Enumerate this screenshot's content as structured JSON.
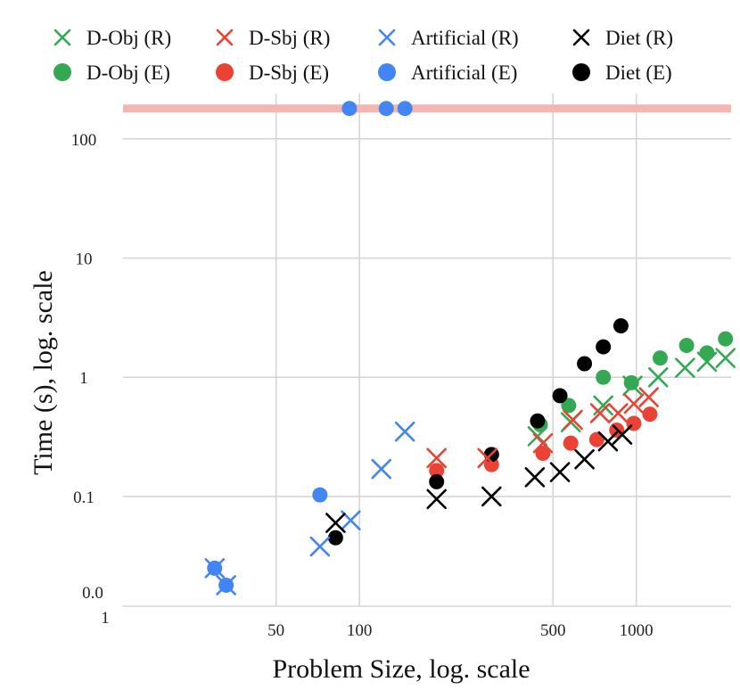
{
  "chart_data": {
    "type": "scatter",
    "title": "",
    "xlabel": "Problem Size, log. scale",
    "ylabel": "Time (s), log. scale",
    "x_scale": "log",
    "y_scale": "log",
    "xlim": [
      14,
      2200
    ],
    "ylim": [
      0.012,
      240
    ],
    "x_ticks": [
      {
        "v": 50,
        "label": "50"
      },
      {
        "v": 100,
        "label": "100"
      },
      {
        "v": 500,
        "label": "500"
      },
      {
        "v": 1000,
        "label": "1000"
      }
    ],
    "y_ticks": [
      {
        "v": 0.1,
        "label": "0.1"
      },
      {
        "v": 1,
        "label": "1"
      },
      {
        "v": 10,
        "label": "10"
      },
      {
        "v": 100,
        "label": "100"
      }
    ],
    "y_extra_labels": [
      "0.0",
      "1"
    ],
    "timeout_line": {
      "y": 180,
      "color": "#f4b6ae"
    },
    "legend": {
      "placement": "top",
      "columns": 4
    },
    "series": [
      {
        "name": "D-Obj (R)",
        "color": "#34a853",
        "marker": "x",
        "points": [
          [
            440,
            0.32
          ],
          [
            580,
            0.42
          ],
          [
            760,
            0.58
          ],
          [
            970,
            0.85
          ],
          [
            1200,
            1.0
          ],
          [
            1500,
            1.2
          ],
          [
            1800,
            1.35
          ],
          [
            2100,
            1.45
          ]
        ]
      },
      {
        "name": "D-Sbj (R)",
        "color": "#ea4335",
        "marker": "x",
        "points": [
          [
            190,
            0.21
          ],
          [
            290,
            0.21
          ],
          [
            460,
            0.28
          ],
          [
            590,
            0.44
          ],
          [
            740,
            0.5
          ],
          [
            860,
            0.5
          ],
          [
            980,
            0.6
          ],
          [
            1110,
            0.68
          ]
        ]
      },
      {
        "name": "Artificial (R)",
        "color": "#4285f4",
        "marker": "x",
        "points": [
          [
            30,
            0.025
          ],
          [
            33,
            0.018
          ],
          [
            72,
            0.038
          ],
          [
            93,
            0.063
          ],
          [
            120,
            0.17
          ],
          [
            146,
            0.35
          ]
        ]
      },
      {
        "name": "Diet (R)",
        "color": "#000000",
        "marker": "x",
        "points": [
          [
            82,
            0.06
          ],
          [
            190,
            0.095
          ],
          [
            300,
            0.1
          ],
          [
            430,
            0.145
          ],
          [
            530,
            0.16
          ],
          [
            650,
            0.205
          ],
          [
            790,
            0.29
          ],
          [
            890,
            0.33
          ]
        ]
      },
      {
        "name": "D-Obj (E)",
        "color": "#34a853",
        "marker": "o",
        "points": [
          [
            450,
            0.4
          ],
          [
            570,
            0.58
          ],
          [
            760,
            1.0
          ],
          [
            960,
            0.9
          ],
          [
            1220,
            1.45
          ],
          [
            1520,
            1.85
          ],
          [
            1800,
            1.6
          ],
          [
            2100,
            2.1
          ]
        ]
      },
      {
        "name": "D-Sbj (E)",
        "color": "#ea4335",
        "marker": "o",
        "points": [
          [
            190,
            0.165
          ],
          [
            300,
            0.185
          ],
          [
            460,
            0.23
          ],
          [
            580,
            0.28
          ],
          [
            720,
            0.3
          ],
          [
            850,
            0.36
          ],
          [
            980,
            0.41
          ],
          [
            1120,
            0.49
          ]
        ]
      },
      {
        "name": "Artificial (E)",
        "color": "#4285f4",
        "marker": "o",
        "points": [
          [
            30,
            0.025
          ],
          [
            33,
            0.018
          ],
          [
            72,
            0.103
          ],
          [
            92,
            180
          ],
          [
            125,
            180
          ],
          [
            146,
            180
          ]
        ]
      },
      {
        "name": "Diet (E)",
        "color": "#000000",
        "marker": "o",
        "points": [
          [
            82,
            0.045
          ],
          [
            190,
            0.133
          ],
          [
            300,
            0.225
          ],
          [
            440,
            0.43
          ],
          [
            530,
            0.7
          ],
          [
            650,
            1.3
          ],
          [
            760,
            1.8
          ],
          [
            880,
            2.7
          ]
        ]
      }
    ]
  }
}
